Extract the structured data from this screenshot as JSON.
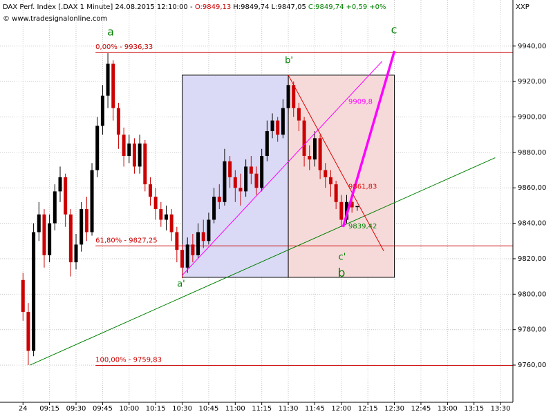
{
  "chart_data": {
    "type": "candlestick",
    "title": "DAX Perf. Index [.DAX  1 Minute] 24.08.2015 12:10:00 -",
    "quote_labels": [
      "O:9849,13",
      "H:9849,74",
      "L:9847,05",
      "C:9849,74",
      "+0,59",
      "+0%"
    ],
    "source": "© www.tradesignalonline.com",
    "corner_label": "XXP",
    "xlim": [
      "08:47",
      "13:37"
    ],
    "xticks": [
      {
        "value": "09:00",
        "label": "24"
      },
      "09:15",
      "09:30",
      "09:45",
      "10:00",
      "10:15",
      "10:30",
      "10:45",
      "11:00",
      "11:15",
      "11:30",
      "11:45",
      "12:00",
      "12:15",
      "12:30",
      "12:45",
      "13:00",
      "13:15",
      "13:30"
    ],
    "ylim": [
      9739,
      9966
    ],
    "yticks": [
      {
        "value": 9760,
        "label": "9760,00"
      },
      {
        "value": 9780,
        "label": "9780,00"
      },
      {
        "value": 9800,
        "label": "9800,00"
      },
      {
        "value": 9820,
        "label": "9820,00"
      },
      {
        "value": 9840,
        "label": "9840,00"
      },
      {
        "value": 9860,
        "label": "9860,00"
      },
      {
        "value": 9880,
        "label": "9880,00"
      },
      {
        "value": 9900,
        "label": "9900,00"
      },
      {
        "value": 9920,
        "label": "9920,00"
      },
      {
        "value": 9940,
        "label": "9940,00"
      }
    ],
    "grid": true,
    "up_color": "#000000",
    "down_color": "#cc0000",
    "candles": {
      "x": [
        "09:00",
        "09:03",
        "09:06",
        "09:09",
        "09:12",
        "09:15",
        "09:18",
        "09:21",
        "09:24",
        "09:27",
        "09:30",
        "09:33",
        "09:36",
        "09:39",
        "09:42",
        "09:45",
        "09:48",
        "09:51",
        "09:54",
        "09:57",
        "10:00",
        "10:03",
        "10:06",
        "10:09",
        "10:12",
        "10:15",
        "10:18",
        "10:21",
        "10:24",
        "10:27",
        "10:30",
        "10:33",
        "10:36",
        "10:39",
        "10:42",
        "10:45",
        "10:48",
        "10:51",
        "10:54",
        "10:57",
        "11:00",
        "11:03",
        "11:06",
        "11:09",
        "11:12",
        "11:15",
        "11:18",
        "11:21",
        "11:24",
        "11:27",
        "11:30",
        "11:33",
        "11:36",
        "11:39",
        "11:42",
        "11:45",
        "11:48",
        "11:51",
        "11:54",
        "11:57",
        "12:00",
        "12:03",
        "12:06",
        "12:09"
      ],
      "open": [
        9808,
        9790,
        9768,
        9835,
        9845,
        9822,
        9840,
        9858,
        9866,
        9845,
        9818,
        9828,
        9848,
        9835,
        9870,
        9895,
        9912,
        9930,
        9905,
        9890,
        9878,
        9885,
        9872,
        9885,
        9862,
        9855,
        9848,
        9842,
        9845,
        9835,
        9825,
        9815,
        9828,
        9822,
        9835,
        9830,
        9842,
        9855,
        9852,
        9875,
        9866,
        9860,
        9858,
        9872,
        9868,
        9860,
        9878,
        9892,
        9898,
        9890,
        9905,
        9918,
        9905,
        9898,
        9878,
        9876,
        9888,
        9870,
        9866,
        9862,
        9852,
        9842,
        9852,
        9849.13
      ],
      "high": [
        9812,
        9795,
        9840,
        9852,
        9848,
        9845,
        9862,
        9872,
        9868,
        9848,
        9834,
        9852,
        9855,
        9874,
        9900,
        9918,
        9936,
        9932,
        9908,
        9894,
        9890,
        9888,
        9890,
        9887,
        9866,
        9860,
        9852,
        9850,
        9848,
        9838,
        9828,
        9832,
        9834,
        9840,
        9842,
        9846,
        9860,
        9862,
        9882,
        9878,
        9870,
        9868,
        9876,
        9878,
        9872,
        9882,
        9898,
        9902,
        9900,
        9910,
        9923,
        9920,
        9908,
        9900,
        9884,
        9892,
        9890,
        9874,
        9870,
        9864,
        9856,
        9856,
        9855,
        9849.74
      ],
      "low": [
        9785,
        9760,
        9765,
        9830,
        9815,
        9818,
        9836,
        9852,
        9838,
        9810,
        9814,
        9824,
        9830,
        9833,
        9866,
        9890,
        9905,
        9898,
        9882,
        9872,
        9874,
        9868,
        9868,
        9858,
        9850,
        9842,
        9838,
        9836,
        9830,
        9818,
        9809,
        9812,
        9818,
        9820,
        9826,
        9828,
        9840,
        9848,
        9850,
        9860,
        9852,
        9850,
        9855,
        9862,
        9856,
        9858,
        9875,
        9888,
        9886,
        9888,
        9902,
        9900,
        9892,
        9872,
        9870,
        9872,
        9865,
        9860,
        9855,
        9848,
        9838,
        9840,
        9846,
        9847.05
      ],
      "close": [
        9790,
        9768,
        9835,
        9845,
        9822,
        9840,
        9858,
        9866,
        9845,
        9818,
        9828,
        9848,
        9835,
        9870,
        9895,
        9912,
        9930,
        9905,
        9890,
        9878,
        9885,
        9872,
        9885,
        9862,
        9855,
        9848,
        9842,
        9845,
        9835,
        9825,
        9815,
        9828,
        9822,
        9835,
        9830,
        9842,
        9855,
        9852,
        9875,
        9866,
        9860,
        9858,
        9872,
        9868,
        9860,
        9878,
        9892,
        9898,
        9890,
        9905,
        9918,
        9905,
        9898,
        9878,
        9876,
        9888,
        9870,
        9866,
        9862,
        9852,
        9842,
        9852,
        9849,
        9849.74
      ]
    },
    "boxes": [
      {
        "x": [
          "10:30",
          "11:30"
        ],
        "values": [
          9923.6,
          9809.5
        ],
        "color": "#dadaf6"
      },
      {
        "x": [
          "11:30",
          "12:30"
        ],
        "values": [
          9923.6,
          9809.5
        ],
        "color": "#f6dada"
      }
    ],
    "fib_levels": [
      {
        "value": 9936.33,
        "label": "0,00% - 9936,33"
      },
      {
        "value": 9827.25,
        "label": "61,80% - 9827,25"
      },
      {
        "value": 9759.83,
        "label": "100,00% - 9759,83"
      }
    ],
    "fib_color": "#cc0000",
    "trendlines": [
      {
        "x": [
          "09:04",
          "13:27"
        ],
        "values": [
          9760,
          9877
        ],
        "color": "#008000"
      },
      {
        "x": [
          "10:30",
          "12:23"
        ],
        "values": [
          9810.6,
          9931.4
        ],
        "color": "#ff00ff"
      },
      {
        "x": [
          "11:30",
          "12:24"
        ],
        "values": [
          9923.6,
          9824.3
        ],
        "color": "#e00000"
      },
      {
        "x": [
          "12:01",
          "12:30"
        ],
        "values": [
          9837.9,
          9937.2
        ],
        "color": "#ff00ff"
      }
    ],
    "price_labels": [
      {
        "value": 9909.8,
        "label": "9909,8",
        "color": "#ff00ff"
      },
      {
        "value": 9861.83,
        "label": "9861,83",
        "color": "#e00000"
      },
      {
        "value": 9839.42,
        "label": "9839,42",
        "color": "#008000"
      }
    ],
    "wave_labels": [
      "a",
      "b'",
      "c",
      "a'",
      "c'",
      "b"
    ],
    "wave_color": "#008000"
  }
}
